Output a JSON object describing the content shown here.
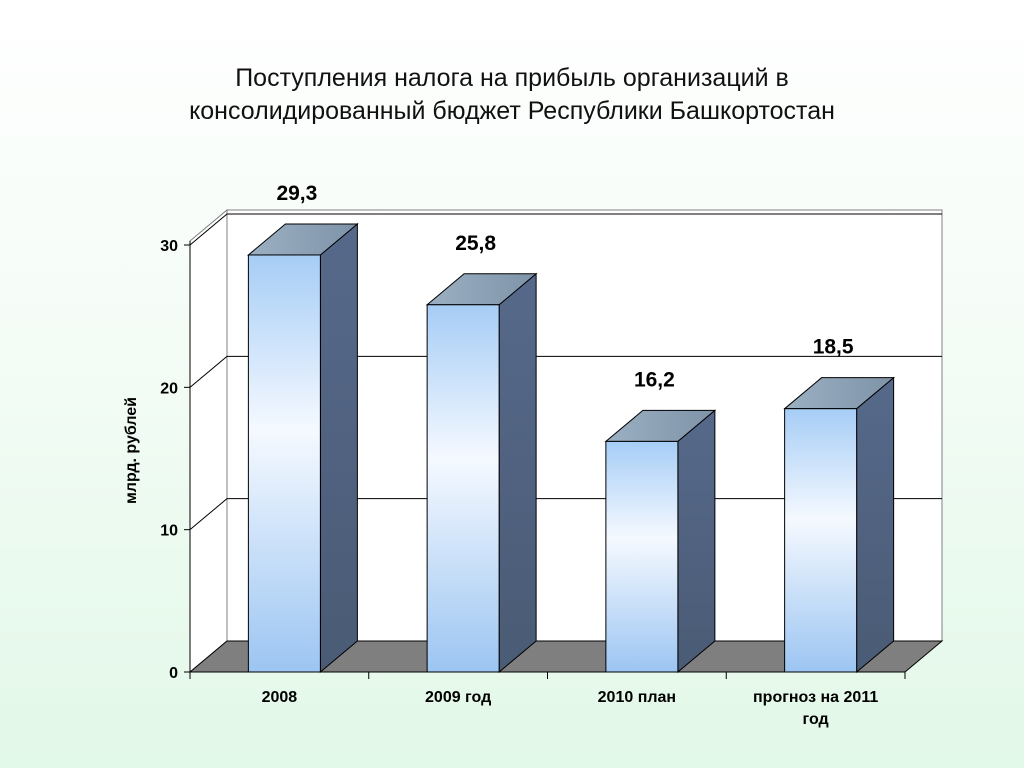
{
  "slide": {
    "title_lines": [
      "Поступления налога на прибыль организаций в",
      "консолидированный бюджет Республики Башкортостан"
    ]
  },
  "chart_data": {
    "type": "bar",
    "style": "3d-column",
    "categories": [
      "2008",
      "2009 год",
      "2010 план",
      "прогноз на 2011 год"
    ],
    "values": [
      29.3,
      25.8,
      16.2,
      18.5
    ],
    "data_labels": [
      "29,3",
      "25,8",
      "16,2",
      "18,5"
    ],
    "title": "Поступления налога на прибыль организаций в консолидированный бюджет Республики Башкортостан",
    "xlabel": "",
    "ylabel": "млрд. рублей",
    "ylim": [
      0,
      30
    ],
    "yticks": [
      0,
      10,
      20,
      30
    ],
    "grid": true,
    "legend": "none",
    "colors": {
      "bar_front_top": "#a6cdf6",
      "bar_front_mid": "#f5f9ff",
      "bar_front_bottom": "#9cc5f2",
      "bar_side": "#50637f",
      "bar_top": "#8a9cae",
      "floor": "#7f7f7f",
      "wall": "#ffffff",
      "gridline": "#000000"
    }
  }
}
